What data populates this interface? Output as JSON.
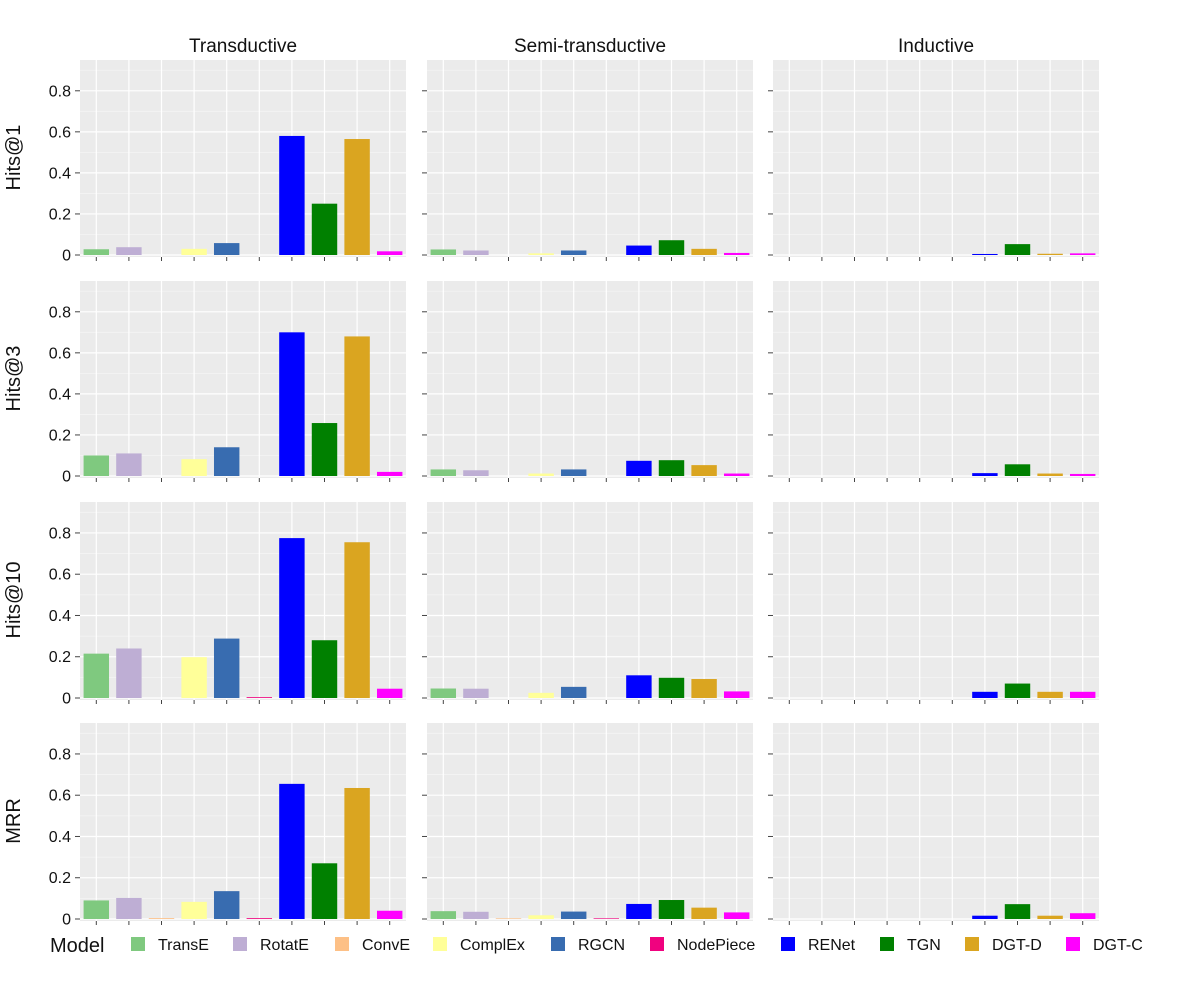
{
  "chart_data": {
    "type": "bar",
    "facet_columns": [
      "Transductive",
      "Semi-transductive",
      "Inductive"
    ],
    "facet_rows": [
      "Hits@1",
      "Hits@3",
      "Hits@10",
      "MRR"
    ],
    "ylim": [
      0,
      0.95
    ],
    "yticks": [
      0,
      0.2,
      0.4,
      0.6,
      0.8
    ],
    "ytick_labels": [
      "0",
      "0.2",
      "0.4",
      "0.6",
      "0.8"
    ],
    "grid": true,
    "legend": {
      "title": "Model",
      "placement": "bottom",
      "items": [
        {
          "name": "TransE",
          "color": "#7fc97f"
        },
        {
          "name": "RotatE",
          "color": "#beaed4"
        },
        {
          "name": "ConvE",
          "color": "#fdc086"
        },
        {
          "name": "ComplEx",
          "color": "#ffff99"
        },
        {
          "name": "RGCN",
          "color": "#386cb0"
        },
        {
          "name": "NodePiece",
          "color": "#f0027f"
        },
        {
          "name": "RENet",
          "color": "#0000ff"
        },
        {
          "name": "TGN",
          "color": "#008000"
        },
        {
          "name": "DGT-D",
          "color": "#daa520"
        },
        {
          "name": "DGT-C",
          "color": "#ff00ff"
        }
      ]
    },
    "models": [
      "TransE",
      "RotatE",
      "ConvE",
      "ComplEx",
      "RGCN",
      "NodePiece",
      "RENet",
      "TGN",
      "DGT-D",
      "DGT-C"
    ],
    "values": {
      "Hits@1": {
        "Transductive": [
          0.028,
          0.038,
          0,
          0.03,
          0.058,
          0,
          0.58,
          0.25,
          0.565,
          0.018
        ],
        "Semi-transductive": [
          0.027,
          0.022,
          0,
          0.008,
          0.022,
          0,
          0.046,
          0.072,
          0.03,
          0.01
        ],
        "Inductive": [
          0,
          0,
          0,
          0,
          0,
          0,
          0.005,
          0.053,
          0.006,
          0.008
        ]
      },
      "Hits@3": {
        "Transductive": [
          0.1,
          0.11,
          0,
          0.082,
          0.14,
          0,
          0.7,
          0.258,
          0.68,
          0.02
        ],
        "Semi-transductive": [
          0.032,
          0.028,
          0,
          0.012,
          0.032,
          0,
          0.074,
          0.077,
          0.053,
          0.012
        ],
        "Inductive": [
          0,
          0,
          0,
          0,
          0,
          0,
          0.014,
          0.057,
          0.012,
          0.01
        ]
      },
      "Hits@10": {
        "Transductive": [
          0.215,
          0.24,
          0,
          0.198,
          0.288,
          0.004,
          0.775,
          0.28,
          0.755,
          0.045
        ],
        "Semi-transductive": [
          0.046,
          0.045,
          0,
          0.025,
          0.054,
          0,
          0.11,
          0.098,
          0.092,
          0.032
        ],
        "Inductive": [
          0,
          0,
          0,
          0,
          0,
          0,
          0.03,
          0.07,
          0.03,
          0.03
        ]
      },
      "MRR": {
        "Transductive": [
          0.09,
          0.102,
          0.004,
          0.083,
          0.135,
          0.004,
          0.655,
          0.27,
          0.635,
          0.04
        ],
        "Semi-transductive": [
          0.038,
          0.035,
          0.003,
          0.018,
          0.036,
          0.003,
          0.073,
          0.092,
          0.055,
          0.032
        ],
        "Inductive": [
          0,
          0,
          0,
          0,
          0,
          0,
          0.016,
          0.072,
          0.016,
          0.028
        ]
      }
    }
  }
}
